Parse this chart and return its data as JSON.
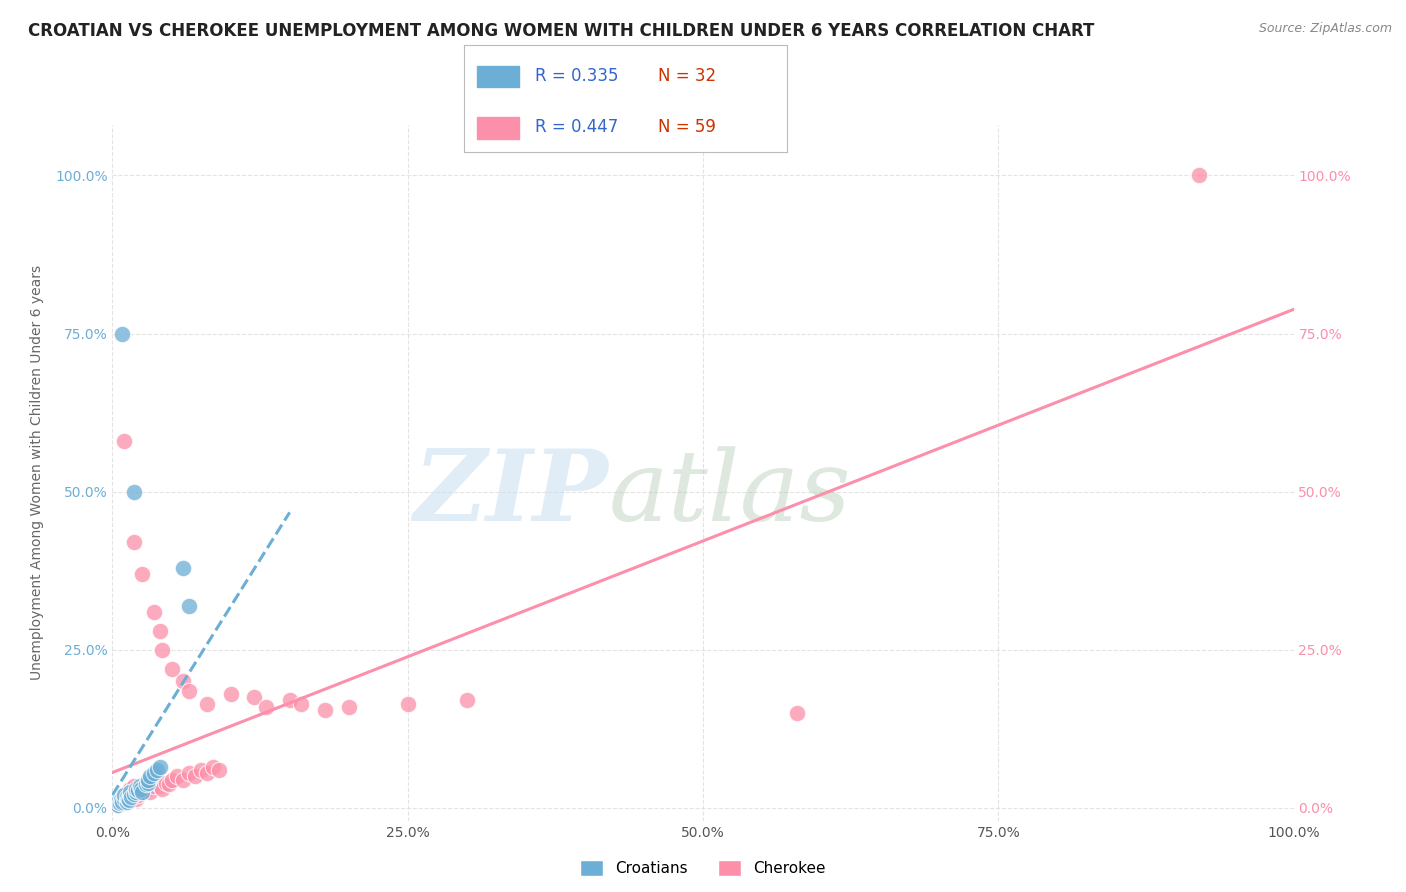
{
  "title": "CROATIAN VS CHEROKEE UNEMPLOYMENT AMONG WOMEN WITH CHILDREN UNDER 6 YEARS CORRELATION CHART",
  "source": "Source: ZipAtlas.com",
  "ylabel": "Unemployment Among Women with Children Under 6 years",
  "xlim": [
    0,
    1.0
  ],
  "ylim": [
    -0.02,
    1.08
  ],
  "xticks": [
    0.0,
    0.25,
    0.5,
    0.75,
    1.0
  ],
  "xtick_labels": [
    "0.0%",
    "25.0%",
    "50.0%",
    "75.0%",
    "100.0%"
  ],
  "yticks": [
    0.0,
    0.25,
    0.5,
    0.75,
    1.0
  ],
  "ytick_labels": [
    "0.0%",
    "25.0%",
    "50.0%",
    "75.0%",
    "100.0%"
  ],
  "croatian_color": "#6baed6",
  "cherokee_color": "#fc8faa",
  "croatian_R": 0.335,
  "croatian_N": 32,
  "cherokee_R": 0.447,
  "cherokee_N": 59,
  "legend_R_color": "#3366cc",
  "legend_N_color": "#cc3300",
  "source_color": "#888888",
  "background_color": "#ffffff",
  "croatian_scatter": [
    [
      0.005,
      0.005
    ],
    [
      0.005,
      0.01
    ],
    [
      0.006,
      0.008
    ],
    [
      0.007,
      0.012
    ],
    [
      0.008,
      0.01
    ],
    [
      0.01,
      0.015
    ],
    [
      0.01,
      0.02
    ],
    [
      0.012,
      0.01
    ],
    [
      0.012,
      0.018
    ],
    [
      0.013,
      0.015
    ],
    [
      0.014,
      0.012
    ],
    [
      0.015,
      0.02
    ],
    [
      0.015,
      0.025
    ],
    [
      0.016,
      0.018
    ],
    [
      0.018,
      0.022
    ],
    [
      0.02,
      0.025
    ],
    [
      0.02,
      0.03
    ],
    [
      0.022,
      0.028
    ],
    [
      0.023,
      0.035
    ],
    [
      0.024,
      0.03
    ],
    [
      0.025,
      0.025
    ],
    [
      0.028,
      0.038
    ],
    [
      0.03,
      0.04
    ],
    [
      0.03,
      0.045
    ],
    [
      0.032,
      0.05
    ],
    [
      0.035,
      0.055
    ],
    [
      0.038,
      0.06
    ],
    [
      0.04,
      0.065
    ],
    [
      0.008,
      0.75
    ],
    [
      0.018,
      0.5
    ],
    [
      0.06,
      0.38
    ],
    [
      0.065,
      0.32
    ]
  ],
  "cherokee_scatter": [
    [
      0.005,
      0.005
    ],
    [
      0.006,
      0.008
    ],
    [
      0.007,
      0.012
    ],
    [
      0.008,
      0.01
    ],
    [
      0.009,
      0.015
    ],
    [
      0.01,
      0.02
    ],
    [
      0.01,
      0.008
    ],
    [
      0.012,
      0.018
    ],
    [
      0.013,
      0.025
    ],
    [
      0.014,
      0.015
    ],
    [
      0.015,
      0.02
    ],
    [
      0.015,
      0.03
    ],
    [
      0.016,
      0.025
    ],
    [
      0.018,
      0.035
    ],
    [
      0.018,
      0.02
    ],
    [
      0.02,
      0.025
    ],
    [
      0.02,
      0.015
    ],
    [
      0.022,
      0.02
    ],
    [
      0.025,
      0.03
    ],
    [
      0.025,
      0.025
    ],
    [
      0.028,
      0.035
    ],
    [
      0.03,
      0.03
    ],
    [
      0.032,
      0.025
    ],
    [
      0.035,
      0.035
    ],
    [
      0.038,
      0.04
    ],
    [
      0.04,
      0.035
    ],
    [
      0.042,
      0.03
    ],
    [
      0.045,
      0.04
    ],
    [
      0.048,
      0.038
    ],
    [
      0.05,
      0.045
    ],
    [
      0.055,
      0.05
    ],
    [
      0.06,
      0.045
    ],
    [
      0.065,
      0.055
    ],
    [
      0.07,
      0.05
    ],
    [
      0.075,
      0.06
    ],
    [
      0.08,
      0.055
    ],
    [
      0.085,
      0.065
    ],
    [
      0.09,
      0.06
    ],
    [
      0.01,
      0.58
    ],
    [
      0.018,
      0.42
    ],
    [
      0.025,
      0.37
    ],
    [
      0.035,
      0.31
    ],
    [
      0.04,
      0.28
    ],
    [
      0.042,
      0.25
    ],
    [
      0.05,
      0.22
    ],
    [
      0.06,
      0.2
    ],
    [
      0.065,
      0.185
    ],
    [
      0.08,
      0.165
    ],
    [
      0.1,
      0.18
    ],
    [
      0.12,
      0.175
    ],
    [
      0.13,
      0.16
    ],
    [
      0.15,
      0.17
    ],
    [
      0.16,
      0.165
    ],
    [
      0.18,
      0.155
    ],
    [
      0.2,
      0.16
    ],
    [
      0.25,
      0.165
    ],
    [
      0.3,
      0.17
    ],
    [
      0.58,
      0.15
    ],
    [
      0.92,
      1.0
    ]
  ],
  "grid_color": "#dddddd",
  "title_fontsize": 12,
  "axis_label_fontsize": 10,
  "tick_fontsize": 10,
  "legend_fontsize": 13
}
